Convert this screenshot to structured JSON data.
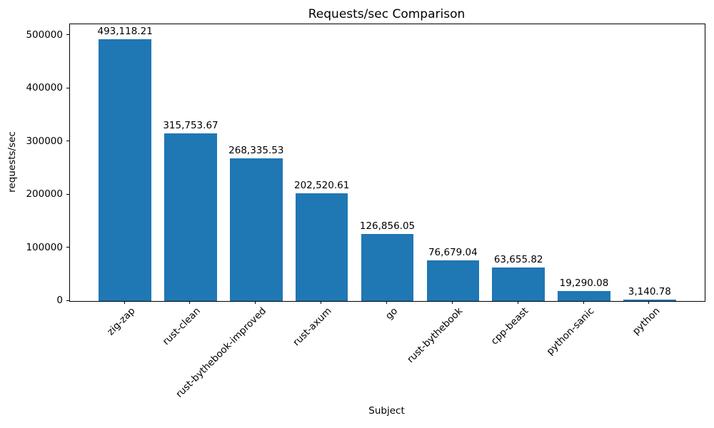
{
  "chart_data": {
    "type": "bar",
    "title": "Requests/sec Comparison",
    "xlabel": "Subject",
    "ylabel": "requests/sec",
    "categories": [
      "zig-zap",
      "rust-clean",
      "rust-bythebook-improved",
      "rust-axum",
      "go",
      "rust-bythebook",
      "cpp-beast",
      "python-sanic",
      "python"
    ],
    "values": [
      493118.21,
      315753.67,
      268335.53,
      202520.61,
      126856.05,
      76679.04,
      63655.82,
      19290.08,
      3140.78
    ],
    "value_labels": [
      "493,118.21",
      "315,753.67",
      "268,335.53",
      "202,520.61",
      "126,856.05",
      "76,679.04",
      "63,655.82",
      "19,290.08",
      "3,140.78"
    ],
    "yticks": [
      0,
      100000,
      200000,
      300000,
      400000,
      500000
    ],
    "ytick_labels": [
      "0",
      "100000",
      "200000",
      "300000",
      "400000",
      "500000"
    ],
    "ylim": [
      0,
      521000
    ],
    "bar_color": "#1f77b4",
    "text_color": "#000000",
    "grid": false,
    "x_tick_rotation": 45,
    "legend_position": "none"
  }
}
